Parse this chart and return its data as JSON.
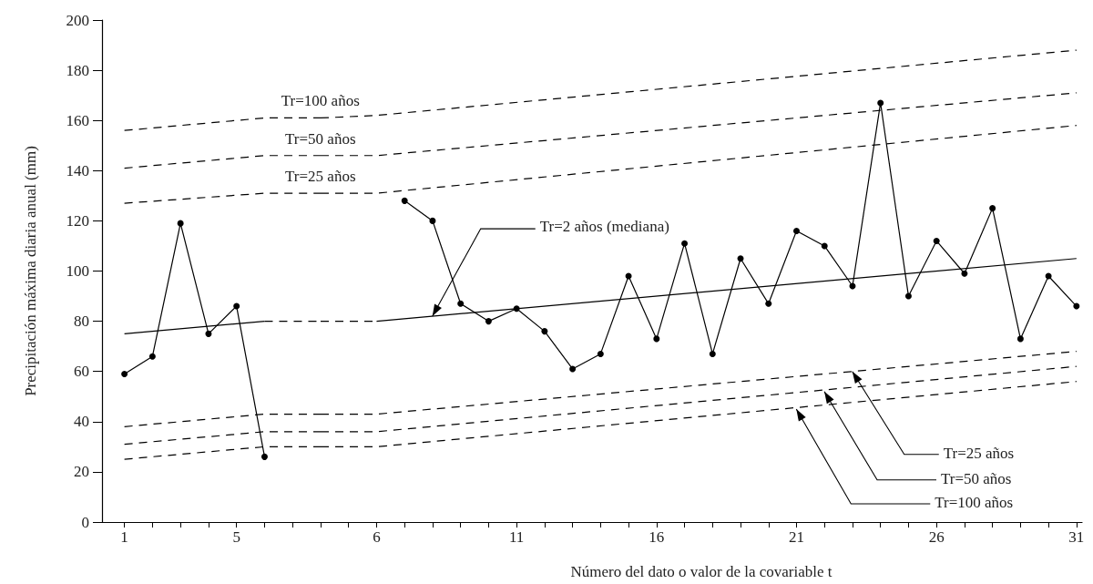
{
  "chart_data": [
    {
      "type": "line",
      "ylabel": "Precipitación máxima diaria anual (mm)",
      "xlim": [
        0.2,
        8
      ],
      "xticks": [
        1,
        {
          "value": 2,
          "label": null
        },
        {
          "value": 3,
          "label": null
        },
        {
          "value": 4,
          "label": null
        },
        5,
        {
          "value": 6,
          "label": null
        },
        {
          "value": 7,
          "label": null
        }
      ],
      "ylim": [
        0,
        200
      ],
      "yticks": [
        0,
        20,
        40,
        60,
        80,
        100,
        120,
        140,
        160,
        180,
        200
      ],
      "series": [
        {
          "color": "#000000",
          "marker": "circle",
          "line_style": "solid",
          "x": [
            1,
            2,
            3,
            4,
            5,
            6
          ],
          "values": [
            59,
            66,
            119,
            75,
            86,
            26
          ]
        },
        {
          "color": "#000000",
          "marker": "none",
          "line_style": "solid",
          "x": [
            1,
            6
          ],
          "values": [
            75,
            80
          ]
        },
        {
          "color": "#000000",
          "marker": "none",
          "line_style": "dashed",
          "x": [
            6,
            8
          ],
          "values": [
            80,
            80
          ]
        },
        {
          "color": "#000000",
          "marker": "none",
          "line_style": "dashed",
          "x": [
            1,
            6,
            8
          ],
          "values": [
            156,
            161,
            161
          ]
        },
        {
          "color": "#000000",
          "marker": "none",
          "line_style": "dashed",
          "x": [
            1,
            6,
            8
          ],
          "values": [
            141,
            146,
            146
          ]
        },
        {
          "color": "#000000",
          "marker": "none",
          "line_style": "dashed",
          "x": [
            1,
            6,
            8
          ],
          "values": [
            127,
            131,
            131
          ]
        },
        {
          "color": "#000000",
          "marker": "none",
          "line_style": "dashed",
          "x": [
            1,
            6,
            8
          ],
          "values": [
            38,
            43,
            43
          ]
        },
        {
          "color": "#000000",
          "marker": "none",
          "line_style": "dashed",
          "x": [
            1,
            6,
            8
          ],
          "values": [
            31,
            36,
            36
          ]
        },
        {
          "color": "#000000",
          "marker": "none",
          "line_style": "dashed",
          "x": [
            1,
            6,
            8
          ],
          "values": [
            25,
            30,
            30
          ]
        }
      ]
    },
    {
      "type": "line",
      "xlabel": "Número del dato o valor de la covariable t",
      "xlim": [
        4,
        31.2
      ],
      "xticks": [
        {
          "value": 4,
          "label": null
        },
        {
          "value": 5,
          "label": null
        },
        6,
        {
          "value": 7,
          "label": null
        },
        {
          "value": 8,
          "label": null
        },
        {
          "value": 9,
          "label": null
        },
        {
          "value": 10,
          "label": null
        },
        11,
        {
          "value": 12,
          "label": null
        },
        {
          "value": 13,
          "label": null
        },
        {
          "value": 14,
          "label": null
        },
        {
          "value": 15,
          "label": null
        },
        16,
        {
          "value": 17,
          "label": null
        },
        {
          "value": 18,
          "label": null
        },
        {
          "value": 19,
          "label": null
        },
        {
          "value": 20,
          "label": null
        },
        21,
        {
          "value": 22,
          "label": null
        },
        {
          "value": 23,
          "label": null
        },
        {
          "value": 24,
          "label": null
        },
        {
          "value": 25,
          "label": null
        },
        26,
        {
          "value": 27,
          "label": null
        },
        {
          "value": 28,
          "label": null
        },
        {
          "value": 29,
          "label": null
        },
        {
          "value": 30,
          "label": null
        },
        31
      ],
      "ylim": [
        0,
        200
      ],
      "tick_labels": "x",
      "series": [
        {
          "color": "#000000",
          "marker": "circle",
          "line_style": "solid",
          "x": [
            7,
            8,
            9,
            10,
            11,
            12,
            13,
            14,
            15,
            16,
            17,
            18,
            19,
            20,
            21,
            22,
            23,
            24,
            25,
            26,
            27,
            28,
            29,
            30,
            31
          ],
          "values": [
            128,
            120,
            87,
            80,
            85,
            76,
            61,
            67,
            98,
            73,
            111,
            67,
            105,
            87,
            116,
            110,
            94,
            167,
            90,
            112,
            99,
            125,
            73,
            98,
            86
          ]
        },
        {
          "color": "#000000",
          "marker": "none",
          "line_style": "dashed",
          "x": [
            4,
            6
          ],
          "values": [
            80,
            80
          ]
        },
        {
          "color": "#000000",
          "marker": "none",
          "line_style": "solid",
          "x": [
            6,
            31
          ],
          "values": [
            80,
            105
          ]
        },
        {
          "color": "#000000",
          "marker": "none",
          "line_style": "dashed",
          "x": [
            4,
            6,
            31
          ],
          "values": [
            161,
            162,
            188
          ]
        },
        {
          "color": "#000000",
          "marker": "none",
          "line_style": "dashed",
          "x": [
            4,
            6,
            31
          ],
          "values": [
            146,
            146,
            171
          ]
        },
        {
          "color": "#000000",
          "marker": "none",
          "line_style": "dashed",
          "x": [
            4,
            6,
            31
          ],
          "values": [
            131,
            131,
            158
          ]
        },
        {
          "color": "#000000",
          "marker": "none",
          "line_style": "dashed",
          "x": [
            4,
            6,
            31
          ],
          "values": [
            43,
            43,
            68
          ]
        },
        {
          "color": "#000000",
          "marker": "none",
          "line_style": "dashed",
          "x": [
            4,
            6,
            31
          ],
          "values": [
            36,
            36,
            62
          ]
        },
        {
          "color": "#000000",
          "marker": "none",
          "line_style": "dashed",
          "x": [
            4,
            6,
            31
          ],
          "values": [
            30,
            30,
            56
          ]
        }
      ],
      "annotations": [
        {
          "text": "Tr=100 años",
          "x": 4,
          "y": 161
        },
        {
          "text": "Tr=50 años",
          "x": 4,
          "y": 146
        },
        {
          "text": "Tr=25 años",
          "x": 4,
          "y": 131
        },
        {
          "text": "Tr=2 años (mediana)",
          "x": 8,
          "y": 82
        },
        {
          "text": "Tr=25 años",
          "x": 23,
          "y": 60
        },
        {
          "text": "Tr=50 años",
          "x": 22,
          "y": 52
        },
        {
          "text": "Tr=100 años",
          "x": 21,
          "y": 45
        }
      ]
    }
  ]
}
